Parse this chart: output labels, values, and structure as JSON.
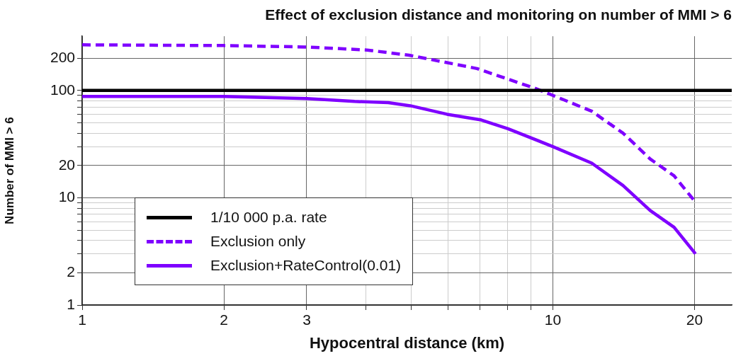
{
  "chart_data": {
    "type": "line",
    "title": "Effect of exclusion distance and monitoring on number of MMI > 6",
    "xlabel": "Hypocentral distance (km)",
    "ylabel": "Number of MMI > 6",
    "log": "xy",
    "xlim": [
      1,
      24
    ],
    "xticks": [
      1,
      2,
      3,
      {
        "value": 4,
        "label": null
      },
      {
        "value": 5,
        "label": null
      },
      {
        "value": 6,
        "label": null
      },
      {
        "value": 7,
        "label": null
      },
      {
        "value": 8,
        "label": null
      },
      {
        "value": 9,
        "label": null
      },
      10,
      20
    ],
    "ylim": [
      1,
      320
    ],
    "yticks": [
      1,
      2,
      {
        "value": 3,
        "label": null
      },
      {
        "value": 4,
        "label": null
      },
      {
        "value": 5,
        "label": null
      },
      {
        "value": 6,
        "label": null
      },
      {
        "value": 7,
        "label": null
      },
      {
        "value": 8,
        "label": null
      },
      {
        "value": 9,
        "label": null
      },
      10,
      20,
      {
        "value": 30,
        "label": null
      },
      {
        "value": 40,
        "label": null
      },
      {
        "value": 50,
        "label": null
      },
      {
        "value": 60,
        "label": null
      },
      {
        "value": 70,
        "label": null
      },
      {
        "value": 80,
        "label": null
      },
      {
        "value": 90,
        "label": null
      },
      100,
      200
    ],
    "grid": true,
    "legend": "bottom left",
    "series": [
      {
        "name": "1/10 000 p.a. rate",
        "color": "#000000",
        "line_style": "solid",
        "x": [
          1,
          24
        ],
        "values": [
          100,
          100
        ]
      },
      {
        "name": "Exclusion only",
        "color": "#7f00ff",
        "line_style": "dashed",
        "x": [
          1,
          2,
          3,
          4.03,
          4.95,
          6.9,
          9.2,
          10,
          12.1,
          14.1,
          16.1,
          18.1,
          20.1
        ],
        "values": [
          266,
          262,
          254,
          238,
          213,
          160,
          104,
          90,
          64,
          40,
          23,
          16,
          9.1
        ]
      },
      {
        "name": "Exclusion+RateControl(0.01)",
        "color": "#7f00ff",
        "line_style": "solid",
        "x": [
          1,
          2,
          3,
          3.79,
          4.47,
          4.98,
          5.96,
          7.05,
          8.03,
          10,
          12.1,
          14.1,
          16.1,
          18.1,
          20.1
        ],
        "values": [
          88,
          88,
          84,
          79,
          77,
          72,
          60,
          53,
          44,
          30,
          21,
          13,
          7.6,
          5.3,
          3.0
        ]
      }
    ]
  }
}
